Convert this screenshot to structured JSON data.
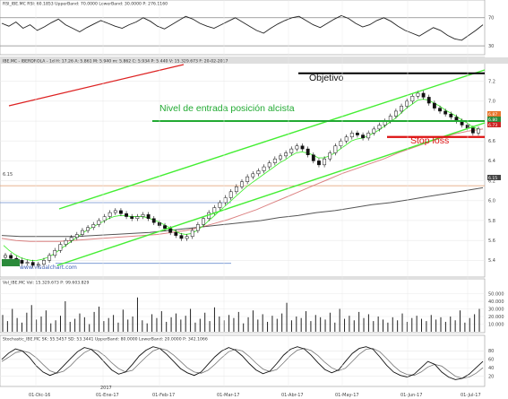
{
  "colors": {
    "grid": "#e9e9e9",
    "frame": "#9a9a9a",
    "axis_band": "#dedede",
    "rsi_line": "#222222",
    "price_candle": "#111111",
    "sma_short": "#d05a5a",
    "sma_long": "#555555",
    "channel": "#44ee33",
    "red_trend": "#dd2222",
    "entry_line": "#22aa33",
    "stop_line": "#dd1111",
    "objective_line": "#000000",
    "orange_level": "#e09a6a",
    "blue_level": "#6d8fcf",
    "volume": "#222222",
    "stoch_k": "#111111",
    "stoch_d": "#777777",
    "watermark": "#3a5bb5",
    "last_price_tag": "#e8742a",
    "green_tag": "#2a8a3a",
    "red_tag": "#cc2222"
  },
  "headers": {
    "rsi": "RSI_IBE.MC RSI: 60.1853  UpperBand: 70.0000  LowerBand: 30.0000  P: 276.1160",
    "price": "IBE.MC - IBERDROLA - 1d  H: 17.26  A: 5.861  M: 5.940  m: 5.862  C: 5.934  P: 5.440  V: 15.329.673  F: 20-02-2017",
    "volume": "Vol_IBE.MC  Vol: 15.329.673  P: 99.603.829",
    "stochastic": "Stochastic_IBE.MC  SK: 55.5457  SD: 53.3441  UpperBand: 80.0000  LowerBand: 20.0000  P: 342.1066"
  },
  "annotations": {
    "objetivo": "Objetivo",
    "entrada": "Nivel de entrada posición alcista",
    "stop": "Stop loss",
    "level_label": "6.15",
    "watermark": "www.visualchart.com"
  },
  "price_tags": {
    "orange": "6.87",
    "green": "6.80",
    "red": "6.73",
    "dark": "6.15"
  },
  "chart_data": [
    {
      "type": "line",
      "name": "RSI",
      "ylim": [
        20,
        85
      ],
      "yticks": [
        30,
        70
      ],
      "values": [
        62,
        58,
        64,
        55,
        60,
        52,
        57,
        63,
        68,
        60,
        55,
        50,
        56,
        61,
        66,
        62,
        58,
        55,
        60,
        64,
        70,
        65,
        58,
        54,
        60,
        66,
        72,
        68,
        62,
        58,
        55,
        60,
        65,
        70,
        64,
        58,
        52,
        48,
        55,
        61,
        66,
        70,
        72,
        66,
        60,
        56,
        62,
        68,
        73,
        69,
        62,
        57,
        60,
        66,
        70,
        65,
        58,
        52,
        48,
        44,
        50,
        56,
        52,
        45,
        40,
        38,
        45,
        52,
        60
      ]
    },
    {
      "type": "candlestick",
      "name": "IBE.MC - IBERDROLA",
      "ylim": [
        5.25,
        7.35
      ],
      "yticks": [
        5.4,
        5.6,
        5.8,
        6.0,
        6.2,
        6.4,
        6.6,
        6.8,
        7.0,
        7.2
      ],
      "x_labels": [
        "01-Dic-16",
        "01-Ene-17",
        "01-Feb-17",
        "01-Mar-17",
        "01-Abr-17",
        "01-May-17",
        "01-Jun-17",
        "01-Jul-17"
      ],
      "year_label": "2017",
      "close": [
        5.45,
        5.42,
        5.4,
        5.37,
        5.38,
        5.35,
        5.36,
        5.4,
        5.45,
        5.5,
        5.56,
        5.6,
        5.63,
        5.66,
        5.7,
        5.73,
        5.76,
        5.8,
        5.84,
        5.88,
        5.9,
        5.87,
        5.84,
        5.82,
        5.84,
        5.86,
        5.82,
        5.78,
        5.75,
        5.72,
        5.68,
        5.65,
        5.62,
        5.64,
        5.7,
        5.76,
        5.82,
        5.88,
        5.93,
        5.98,
        6.03,
        6.09,
        6.14,
        6.19,
        6.24,
        6.27,
        6.3,
        6.34,
        6.38,
        6.42,
        6.45,
        6.48,
        6.52,
        6.55,
        6.52,
        6.46,
        6.4,
        6.36,
        6.42,
        6.48,
        6.55,
        6.6,
        6.64,
        6.68,
        6.66,
        6.63,
        6.68,
        6.72,
        6.76,
        6.8,
        6.85,
        6.9,
        6.95,
        7.0,
        7.05,
        7.08,
        7.04,
        6.98,
        6.93,
        6.9,
        6.87,
        6.84,
        6.8,
        6.76,
        6.73,
        6.68,
        6.72
      ],
      "sma_short": [
        5.55,
        5.5,
        5.46,
        5.43,
        5.41,
        5.4,
        5.4,
        5.41,
        5.43,
        5.46,
        5.5,
        5.54,
        5.58,
        5.62,
        5.66,
        5.7,
        5.73,
        5.76,
        5.79,
        5.82,
        5.84,
        5.85,
        5.85,
        5.84,
        5.84,
        5.84,
        5.83,
        5.81,
        5.79,
        5.76,
        5.73,
        5.7,
        5.67,
        5.66,
        5.67,
        5.7,
        5.74,
        5.79,
        5.84,
        5.89,
        5.94,
        5.99,
        6.04,
        6.09,
        6.14,
        6.18,
        6.22,
        6.26,
        6.3,
        6.34,
        6.38,
        6.41,
        6.45,
        6.48,
        6.49,
        6.48,
        6.46,
        6.43,
        6.43,
        6.45,
        6.48,
        6.52,
        6.56,
        6.6,
        6.62,
        6.63,
        6.65,
        6.68,
        6.71,
        6.75,
        6.79,
        6.83,
        6.88,
        6.93,
        6.97,
        7.01,
        7.02,
        7.01,
        6.98,
        6.95,
        6.91,
        6.88,
        6.85,
        6.81,
        6.78,
        6.74,
        6.72
      ],
      "sma_long": [
        5.62,
        5.6,
        5.59,
        5.59,
        5.59,
        5.6,
        5.61,
        5.62,
        5.63,
        5.64,
        5.65,
        5.66,
        5.68,
        5.7,
        5.73,
        5.77,
        5.81,
        5.86,
        5.91,
        5.97,
        6.03,
        6.09,
        6.15,
        6.21,
        6.27,
        6.32,
        6.37,
        6.42,
        6.48,
        6.53,
        6.58,
        6.63,
        6.67,
        6.7,
        6.72
      ],
      "sma_very_long": [
        5.65,
        5.64,
        5.64,
        5.64,
        5.64,
        5.65,
        5.66,
        5.67,
        5.68,
        5.7,
        5.72,
        5.74,
        5.76,
        5.78,
        5.8,
        5.83,
        5.85,
        5.88,
        5.9,
        5.93,
        5.96,
        5.98,
        6.01,
        6.04,
        6.07,
        6.1,
        6.13
      ],
      "levels": {
        "objective": 7.28,
        "entry": 6.8,
        "stop": 6.64,
        "orange": 6.15,
        "blue_upper": 5.98,
        "blue_lower": 5.37
      }
    },
    {
      "type": "bar",
      "name": "Volume",
      "ylim": [
        0,
        60000
      ],
      "yticks": [
        10000,
        20000,
        30000,
        40000,
        50000
      ],
      "values": [
        22000,
        14000,
        30000,
        18000,
        12000,
        25000,
        35000,
        16000,
        20000,
        28000,
        11000,
        15000,
        21000,
        40000,
        13000,
        17000,
        24000,
        19000,
        10000,
        26000,
        33000,
        14000,
        18000,
        22000,
        12000,
        29000,
        16000,
        20000,
        45000,
        15000,
        11000,
        23000,
        18000,
        27000,
        13000,
        19000,
        24000,
        16000,
        21000,
        30000,
        12000,
        17000,
        25000,
        14000,
        32000,
        20000,
        15000,
        22000,
        18000,
        26000,
        11000,
        19000,
        28000,
        16000,
        23000,
        13000,
        21000,
        17000,
        24000,
        38000,
        15000,
        20000,
        18000,
        27000,
        14000,
        22000,
        19000,
        16000,
        25000,
        12000,
        30000,
        17000,
        21000,
        15000,
        26000,
        18000,
        23000,
        14000,
        20000,
        16000,
        12000,
        19000,
        15000,
        24000,
        13000,
        18000,
        21000,
        17000,
        14000,
        22000,
        16000,
        19000,
        13000,
        20000,
        15000,
        28000,
        12000,
        18000,
        23000,
        30000
      ]
    },
    {
      "type": "line",
      "name": "Stochastic",
      "ylim": [
        0,
        100
      ],
      "yticks": [
        20,
        40,
        60,
        80
      ],
      "k": [
        60,
        75,
        85,
        80,
        65,
        45,
        30,
        22,
        28,
        45,
        62,
        78,
        88,
        84,
        70,
        52,
        35,
        25,
        30,
        48,
        68,
        82,
        90,
        86,
        72,
        55,
        38,
        28,
        22,
        30,
        48,
        66,
        80,
        88,
        82,
        68,
        50,
        35,
        26,
        32,
        50,
        70,
        84,
        90,
        85,
        70,
        52,
        36,
        28,
        35,
        55,
        74,
        86,
        90,
        84,
        66,
        46,
        30,
        22,
        18,
        25,
        40,
        55,
        48,
        30,
        18,
        12,
        15,
        25,
        40,
        55
      ],
      "d": [
        55,
        65,
        76,
        80,
        76,
        64,
        48,
        33,
        27,
        32,
        45,
        62,
        76,
        84,
        80,
        68,
        52,
        38,
        30,
        34,
        50,
        66,
        80,
        86,
        82,
        70,
        55,
        40,
        30,
        27,
        34,
        48,
        64,
        78,
        84,
        80,
        67,
        51,
        37,
        31,
        36,
        52,
        69,
        82,
        86,
        81,
        69,
        53,
        40,
        33,
        39,
        55,
        72,
        84,
        86,
        78,
        62,
        45,
        31,
        24,
        22,
        30,
        42,
        48,
        44,
        32,
        20,
        15,
        18,
        27,
        40
      ]
    }
  ]
}
